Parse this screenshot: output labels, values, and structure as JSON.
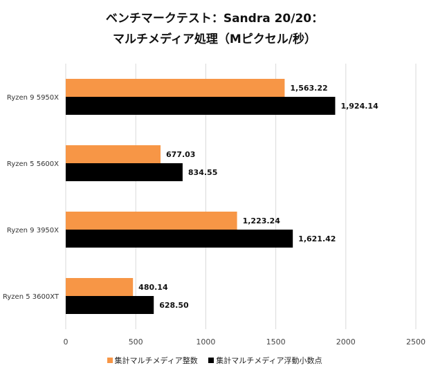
{
  "chart_data": {
    "type": "bar",
    "orientation": "horizontal",
    "title_line1": "ベンチマークテスト：Sandra 20/20：",
    "title_line2": "マルチメディア処理（Mピクセル/秒）",
    "categories": [
      "Ryzen 9 5950X",
      "Ryzen 5 5600X",
      "Ryzen 9 3950X",
      "Ryzen 5 3600XT"
    ],
    "series": [
      {
        "name": "集計マルチメディア整数",
        "color": "#f79646",
        "values": [
          1563.22,
          677.03,
          1223.24,
          480.14
        ]
      },
      {
        "name": "集計マルチメディア浮動小数点",
        "color": "#000000",
        "values": [
          1924.14,
          834.55,
          1621.42,
          628.5
        ]
      }
    ],
    "value_labels": [
      [
        "1,563.22",
        "677.03",
        "1,223.24",
        "480.14"
      ],
      [
        "1,924.14",
        "834.55",
        "1,621.42",
        "628.50"
      ]
    ],
    "xlim": [
      0,
      2500
    ],
    "xticks": [
      "0",
      "500",
      "1000",
      "1500",
      "2000",
      "2500"
    ],
    "grid": true,
    "legend_position": "bottom"
  }
}
